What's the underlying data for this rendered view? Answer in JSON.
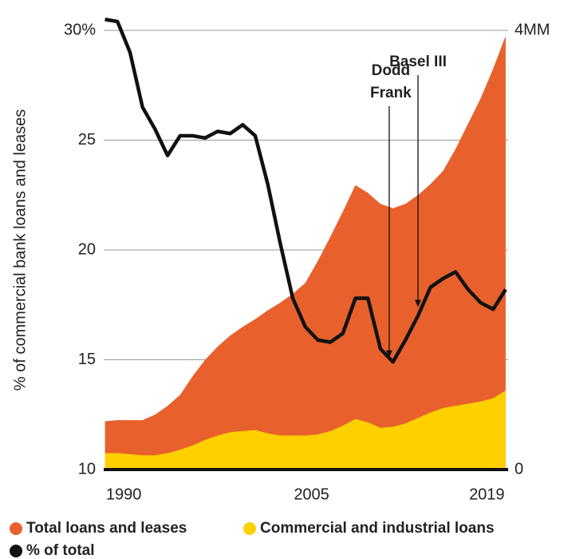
{
  "chart_data": {
    "type": "area-line",
    "y_label": "% of commercial bank loans and leases",
    "x": [
      1988.5,
      1989.5,
      1990.5,
      1991.5,
      1992.5,
      1993.5,
      1994.5,
      1995.5,
      1996.5,
      1997.5,
      1998.5,
      1999.5,
      2000.5,
      2001.5,
      2002.5,
      2003.5,
      2004.5,
      2005.5,
      2006.5,
      2007.5,
      2008.5,
      2009.5,
      2010.5,
      2011.5,
      2012.5,
      2013.5,
      2014.5,
      2015.5,
      2016.5,
      2017.5,
      2018.5,
      2019.5,
      2020.5
    ],
    "series": [
      {
        "name": "Total loans and leases",
        "color": "#e8612c",
        "axis": "y2",
        "kind": "area",
        "values": [
          0.44,
          0.45,
          0.45,
          0.45,
          0.5,
          0.58,
          0.68,
          0.85,
          1.0,
          1.12,
          1.22,
          1.3,
          1.37,
          1.45,
          1.52,
          1.6,
          1.7,
          1.9,
          2.12,
          2.35,
          2.59,
          2.52,
          2.42,
          2.38,
          2.42,
          2.5,
          2.6,
          2.72,
          2.92,
          3.15,
          3.38,
          3.65,
          3.95
        ]
      },
      {
        "name": "Commercial and industrial loans",
        "color": "#ffd000",
        "axis": "y2",
        "kind": "area",
        "values": [
          0.15,
          0.15,
          0.14,
          0.13,
          0.13,
          0.15,
          0.18,
          0.22,
          0.27,
          0.31,
          0.34,
          0.35,
          0.36,
          0.33,
          0.31,
          0.31,
          0.31,
          0.32,
          0.35,
          0.4,
          0.46,
          0.43,
          0.38,
          0.39,
          0.42,
          0.47,
          0.52,
          0.56,
          0.58,
          0.6,
          0.62,
          0.65,
          0.72
        ]
      },
      {
        "name": "% of total",
        "color": "#111111",
        "axis": "y",
        "kind": "line",
        "values": [
          30.5,
          30.4,
          29.0,
          26.5,
          25.5,
          24.3,
          25.2,
          25.2,
          25.1,
          25.4,
          25.3,
          25.7,
          25.2,
          23.0,
          20.3,
          17.8,
          16.5,
          15.9,
          15.8,
          16.2,
          17.8,
          17.8,
          15.5,
          14.9,
          15.9,
          17.0,
          18.3,
          18.7,
          19.0,
          18.2,
          17.6,
          17.3,
          18.2
        ]
      }
    ],
    "xlim": [
      1988.4,
      2020.7
    ],
    "xticks": [
      1990,
      2005,
      2019
    ],
    "ylim": [
      10,
      30
    ],
    "yticks": [
      10,
      15,
      20,
      25,
      {
        "value": 30,
        "label": "30%"
      }
    ],
    "y2lim": [
      0,
      4
    ],
    "y2ticks": [
      0,
      {
        "value": 4,
        "label": "4MM"
      }
    ],
    "grid": true,
    "annotations": [
      {
        "lines": [
          "Dodd",
          "Frank"
        ],
        "x": 2011.2,
        "y": 15.1
      },
      {
        "lines": [
          "Basel III"
        ],
        "x": 2013.5,
        "y": 17.4
      }
    ]
  }
}
